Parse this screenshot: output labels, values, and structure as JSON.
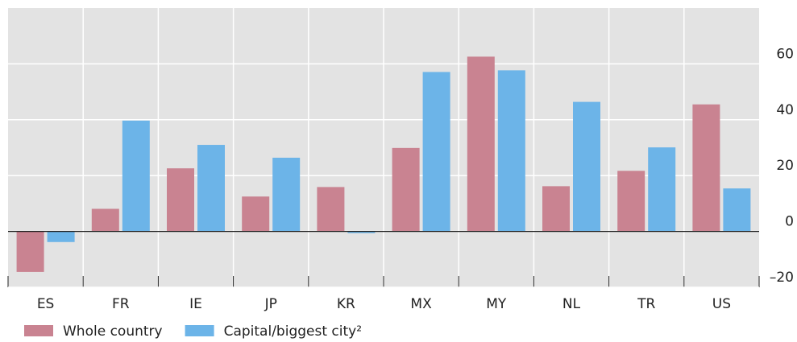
{
  "chart_data": {
    "type": "bar",
    "categories": [
      "ES",
      "FR",
      "IE",
      "JP",
      "KR",
      "MX",
      "MY",
      "NL",
      "TR",
      "US"
    ],
    "series": [
      {
        "name": "Whole country",
        "color": "#c98391",
        "values": [
          -14.5,
          8.1,
          22.6,
          12.5,
          15.9,
          29.9,
          62.6,
          16.2,
          21.7,
          45.5
        ]
      },
      {
        "name": "Capital/biggest city²",
        "color": "#6cb4e8",
        "values": [
          -3.8,
          39.7,
          31.0,
          26.4,
          -0.6,
          57.1,
          57.7,
          46.4,
          30.1,
          15.4
        ]
      }
    ],
    "ylim": [
      -20,
      80
    ],
    "yticks": [
      {
        "value": -20,
        "label": "–20"
      },
      0,
      20,
      40,
      60
    ],
    "grid": true
  }
}
